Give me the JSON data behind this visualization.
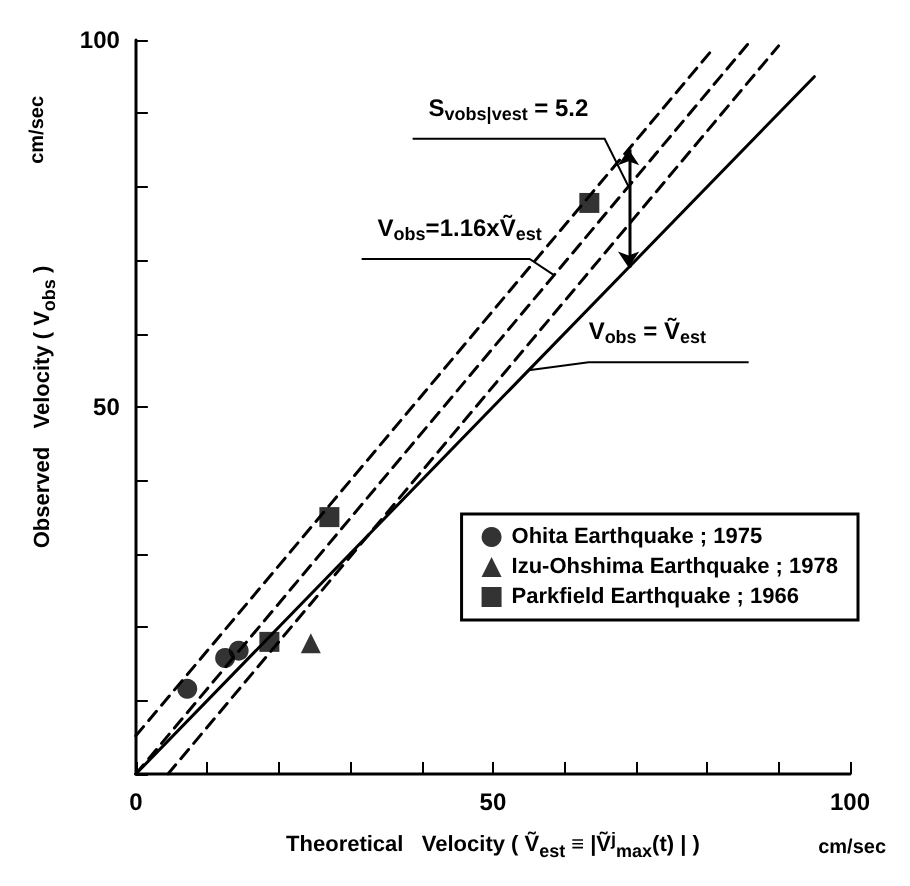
{
  "chart_data": {
    "type": "scatter",
    "xlabel": "Theoretical   Velocity ( Ṽ$_{est}$ ≡ |Ṽ$^{j}$$_{max}$(t) | )",
    "ylabel": "Observed   Velocity ( V$_{obs}$ )",
    "xlim": [
      0,
      100
    ],
    "ylim": [
      0,
      100
    ],
    "xticks": [
      0,
      {
        "value": 10,
        "label": null
      },
      {
        "value": 20,
        "label": null
      },
      {
        "value": 30,
        "label": null
      },
      {
        "value": 40,
        "label": null
      },
      50,
      {
        "value": 60,
        "label": null
      },
      {
        "value": 70,
        "label": null
      },
      {
        "value": 80,
        "label": null
      },
      {
        "value": 90,
        "label": null
      },
      100
    ],
    "yticks": [
      {
        "value": 0,
        "label": null
      },
      {
        "value": 10,
        "label": null
      },
      {
        "value": 20,
        "label": null
      },
      {
        "value": 30,
        "label": null
      },
      {
        "value": 40,
        "label": null
      },
      50,
      {
        "value": 60,
        "label": null
      },
      {
        "value": 70,
        "label": null
      },
      {
        "value": 80,
        "label": null
      },
      {
        "value": 90,
        "label": null
      },
      100
    ],
    "grid": false,
    "legend": "bottom right",
    "series": [
      {
        "type": "line",
        "color": "#000000",
        "line_style": "solid",
        "marker": "none",
        "x": [
          0,
          95
        ],
        "values": [
          0,
          95
        ]
      },
      {
        "type": "line",
        "color": "#000000",
        "line_style": "dashed",
        "marker": "none",
        "x": [
          0,
          86
        ],
        "values": [
          0,
          99.8
        ]
      },
      {
        "type": "line",
        "color": "#000000",
        "line_style": "dashed",
        "marker": "none",
        "x": [
          0,
          81
        ],
        "values": [
          5.2,
          99
        ]
      },
      {
        "type": "line",
        "color": "#000000",
        "line_style": "dashed",
        "marker": "none",
        "x": [
          4.5,
          90
        ],
        "values": [
          0,
          99.2
        ]
      },
      {
        "name": "Ohita Earthquake ; 1975",
        "color": "#000000",
        "marker": "circle",
        "x": [
          7.2,
          12.5,
          14.4
        ],
        "values": [
          11.6,
          15.8,
          16.8
        ]
      },
      {
        "name": "Izu-Ohshima Earthquake ; 1978",
        "color": "#000000",
        "marker": "triangle",
        "x": [
          24.5
        ],
        "values": [
          17.8
        ]
      },
      {
        "name": "Parkfield Earthquake ; 1966",
        "color": "#000000",
        "marker": "square",
        "x": [
          18.7,
          27.1,
          63.5
        ],
        "values": [
          18,
          35,
          77.8
        ]
      }
    ],
    "annotations": [
      "cm/sec",
      "cm/sec",
      {
        "text": "S$_{vobs|vest}$ = 5.2",
        "x": 69,
        "y": 80
      },
      {
        "text": "V$_{obs}$=1.16xṼ$_{est}$",
        "x": 58.5,
        "y": 68
      },
      {
        "text": "V$_{obs}$ = Ṽ$_{est}$",
        "x": 55,
        "y": 55
      }
    ]
  }
}
